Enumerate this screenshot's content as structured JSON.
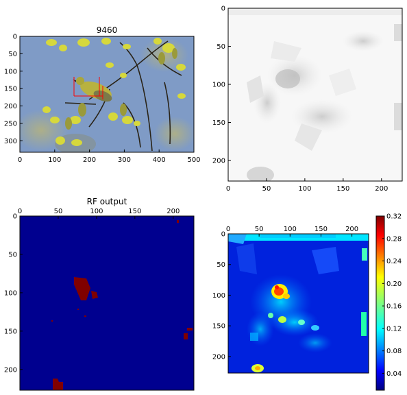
{
  "panels": {
    "photo": {
      "title": "9460",
      "x_ticks": [
        "0",
        "100",
        "200",
        "300",
        "400",
        "500"
      ],
      "y_ticks": [
        "0",
        "50",
        "100",
        "150",
        "200",
        "250",
        "300"
      ]
    },
    "grayscale_map": {
      "x_ticks": [
        "0",
        "50",
        "100",
        "150",
        "200"
      ],
      "y_ticks": [
        "0",
        "50",
        "100",
        "150",
        "200"
      ]
    },
    "rf_output": {
      "title": "RF output",
      "x_ticks": [
        "0",
        "50",
        "100",
        "150",
        "200"
      ],
      "y_ticks": [
        "0",
        "50",
        "100",
        "150",
        "200"
      ]
    },
    "heatmap": {
      "x_ticks": [
        "0",
        "50",
        "100",
        "150",
        "200"
      ],
      "y_ticks": [
        "0",
        "50",
        "100",
        "150",
        "200"
      ],
      "colorbar_ticks": [
        "0.32",
        "0.28",
        "0.24",
        "0.20",
        "0.16",
        "0.12",
        "0.08",
        "0.04"
      ]
    }
  },
  "colors": {
    "sky_blue": "#7f9bc6",
    "leaf_yellow": "#d6d83c",
    "rf_background": "#00008f",
    "rf_positive": "#800000",
    "heat_low": "#0022dd",
    "heat_high": "#ff2200"
  },
  "chart_data": [
    {
      "type": "heatmap",
      "title": "9460",
      "xlim": [
        0,
        500
      ],
      "ylim": [
        333,
        0
      ],
      "x_ticks": [
        0,
        100,
        200,
        300,
        400,
        500
      ],
      "y_ticks": [
        0,
        50,
        100,
        150,
        200,
        250,
        300
      ]
    },
    {
      "type": "heatmap",
      "xlim": [
        0,
        227
      ],
      "ylim": [
        227,
        0
      ],
      "x_ticks": [
        0,
        50,
        100,
        150,
        200
      ],
      "y_ticks": [
        0,
        50,
        100,
        150,
        200
      ]
    },
    {
      "type": "heatmap",
      "title": "RF output",
      "xlim": [
        0,
        227
      ],
      "ylim": [
        227,
        0
      ],
      "x_ticks": [
        0,
        50,
        100,
        150,
        200
      ],
      "y_ticks": [
        0,
        50,
        100,
        150,
        200
      ]
    },
    {
      "type": "heatmap",
      "xlim": [
        0,
        227
      ],
      "ylim": [
        227,
        0
      ],
      "x_ticks": [
        0,
        50,
        100,
        150,
        200
      ],
      "y_ticks": [
        0,
        50,
        100,
        150,
        200
      ],
      "colorbar_range": [
        0.01,
        0.32
      ],
      "colorbar_ticks": [
        0.04,
        0.08,
        0.12,
        0.16,
        0.2,
        0.24,
        0.28,
        0.32
      ]
    }
  ]
}
